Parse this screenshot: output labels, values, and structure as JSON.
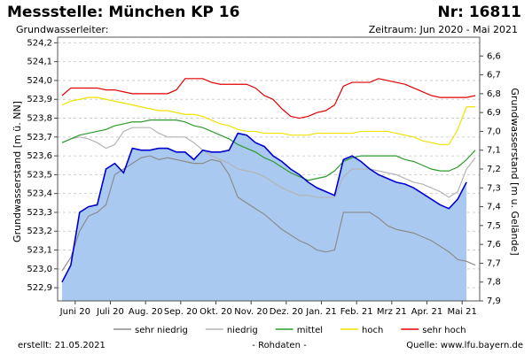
{
  "header": {
    "title": "Messstelle: München KP 16",
    "number": "Nr: 16811",
    "aquifer": "Grundwasserleiter:",
    "period": "Zeitraum: Jun 2020 - Mai 2021"
  },
  "footer": {
    "created": "erstellt:  21.05.2021",
    "note": "- Rohdaten -",
    "source": "Quelle: www.lfu.bayern.de"
  },
  "chart_data": {
    "type": "line",
    "ylabel": "Grundwasserstand [m ü. NN]",
    "y2label": "Grundwasserstand [m u. Gelände]",
    "categories": [
      null,
      "Juni 20",
      null,
      null,
      null,
      "Juli 20",
      null,
      null,
      null,
      "Aug. 20",
      null,
      null,
      null,
      "Sep. 20",
      null,
      null,
      null,
      "Okt. 20",
      null,
      null,
      null,
      "Nov. 20",
      null,
      null,
      null,
      "Dez. 20",
      null,
      null,
      null,
      "Jan. 21",
      null,
      null,
      null,
      "Feb. 21",
      null,
      null,
      null,
      "Mrz 21",
      null,
      null,
      null,
      "Apr. 21",
      null,
      null,
      null,
      "Mai 21",
      null,
      null
    ],
    "ylim": [
      522.83,
      524.23
    ],
    "yticks": [
      {
        "value": 522.9,
        "label": "522,9"
      },
      {
        "value": 523.0,
        "label": "523,0"
      },
      {
        "value": 523.1,
        "label": "523,1"
      },
      {
        "value": 523.2,
        "label": "523,2"
      },
      {
        "value": 523.3,
        "label": "523,3"
      },
      {
        "value": 523.4,
        "label": "523,4"
      },
      {
        "value": 523.5,
        "label": "523,5"
      },
      {
        "value": 523.6,
        "label": "523,6"
      },
      {
        "value": 523.7,
        "label": "523,7"
      },
      {
        "value": 523.8,
        "label": "523,8"
      },
      {
        "value": 523.9,
        "label": "523,9"
      },
      {
        "value": 524.0,
        "label": "524,0"
      },
      {
        "value": 524.1,
        "label": "524,1"
      },
      {
        "value": 524.2,
        "label": "524,2"
      }
    ],
    "y2lim": [
      7.9,
      6.5
    ],
    "y2ticks": [
      {
        "value": 6.6,
        "label": "6,6"
      },
      {
        "value": 6.7,
        "label": "6,7"
      },
      {
        "value": 6.8,
        "label": "6,8"
      },
      {
        "value": 6.9,
        "label": "6,9"
      },
      {
        "value": 7.0,
        "label": "7,0"
      },
      {
        "value": 7.1,
        "label": "7,1"
      },
      {
        "value": 7.2,
        "label": "7,2"
      },
      {
        "value": 7.3,
        "label": "7,3"
      },
      {
        "value": 7.4,
        "label": "7,4"
      },
      {
        "value": 7.5,
        "label": "7,5"
      },
      {
        "value": 7.6,
        "label": "7,6"
      },
      {
        "value": 7.7,
        "label": "7,7"
      },
      {
        "value": 7.8,
        "label": "7,8"
      },
      {
        "value": 7.9,
        "label": "7,9"
      }
    ],
    "grid": true,
    "legend": "bottom",
    "series": [
      {
        "name": "sehr niedrig",
        "color": "#8c8c8c",
        "values": [
          522.99,
          523.06,
          523.2,
          523.28,
          523.3,
          523.34,
          523.5,
          523.53,
          523.56,
          523.59,
          523.6,
          523.58,
          523.59,
          523.58,
          523.57,
          523.56,
          523.56,
          523.58,
          523.57,
          523.5,
          523.38,
          523.35,
          523.32,
          523.29,
          523.25,
          523.21,
          523.18,
          523.15,
          523.13,
          523.1,
          523.09,
          523.1,
          523.3,
          523.3,
          523.3,
          523.3,
          523.27,
          523.23,
          523.21,
          523.2,
          523.19,
          523.17,
          523.15,
          523.12,
          523.09,
          523.05,
          523.04,
          523.02
        ]
      },
      {
        "name": "niedrig",
        "color": "#b4b4b4",
        "values": [
          523.67,
          523.69,
          523.7,
          523.69,
          523.67,
          523.64,
          523.66,
          523.73,
          523.75,
          523.75,
          523.75,
          523.72,
          523.7,
          523.7,
          523.7,
          523.67,
          523.63,
          523.6,
          523.58,
          523.56,
          523.53,
          523.52,
          523.51,
          523.49,
          523.46,
          523.43,
          523.41,
          523.39,
          523.39,
          523.38,
          523.38,
          523.38,
          523.49,
          523.53,
          523.53,
          523.53,
          523.52,
          523.51,
          523.5,
          523.48,
          523.46,
          523.45,
          523.43,
          523.41,
          523.38,
          523.41,
          523.53,
          523.59
        ]
      },
      {
        "name": "mittel",
        "color": "#2e9a2e",
        "values": [
          523.67,
          523.69,
          523.71,
          523.72,
          523.73,
          523.74,
          523.76,
          523.77,
          523.78,
          523.78,
          523.79,
          523.79,
          523.79,
          523.79,
          523.78,
          523.76,
          523.75,
          523.73,
          523.71,
          523.69,
          523.66,
          523.64,
          523.62,
          523.59,
          523.57,
          523.54,
          523.51,
          523.49,
          523.47,
          523.48,
          523.49,
          523.52,
          523.57,
          523.59,
          523.6,
          523.6,
          523.6,
          523.6,
          523.6,
          523.58,
          523.57,
          523.55,
          523.53,
          523.52,
          523.52,
          523.54,
          523.58,
          523.63
        ]
      },
      {
        "name": "hoch",
        "color": "#f2e200",
        "values": [
          523.87,
          523.89,
          523.9,
          523.91,
          523.91,
          523.9,
          523.89,
          523.88,
          523.87,
          523.86,
          523.85,
          523.84,
          523.84,
          523.83,
          523.82,
          523.82,
          523.81,
          523.79,
          523.77,
          523.76,
          523.74,
          523.73,
          523.73,
          523.72,
          523.72,
          523.72,
          523.71,
          523.71,
          523.71,
          523.72,
          523.72,
          523.72,
          523.72,
          523.72,
          523.73,
          523.73,
          523.73,
          523.73,
          523.72,
          523.71,
          523.7,
          523.68,
          523.67,
          523.66,
          523.66,
          523.74,
          523.86,
          523.86
        ]
      },
      {
        "name": "sehr hoch",
        "color": "#e00000",
        "values": [
          523.92,
          523.96,
          523.96,
          523.96,
          523.96,
          523.95,
          523.95,
          523.94,
          523.93,
          523.93,
          523.93,
          523.93,
          523.93,
          523.95,
          524.01,
          524.01,
          524.01,
          523.99,
          523.98,
          523.98,
          523.98,
          523.98,
          523.96,
          523.92,
          523.9,
          523.85,
          523.81,
          523.8,
          523.81,
          523.83,
          523.84,
          523.87,
          523.97,
          523.99,
          523.99,
          523.99,
          524.01,
          524.0,
          523.99,
          523.98,
          523.96,
          523.94,
          523.92,
          523.91,
          523.91,
          523.91,
          523.91,
          523.92
        ]
      }
    ],
    "measured": {
      "color": "#0000cc",
      "fill": "#a9c9f0",
      "values": [
        522.93,
        523.02,
        523.3,
        523.33,
        523.34,
        523.53,
        523.56,
        523.51,
        523.64,
        523.63,
        523.63,
        523.64,
        523.64,
        523.62,
        523.62,
        523.58,
        523.63,
        523.62,
        523.62,
        523.63,
        523.72,
        523.71,
        523.67,
        523.65,
        523.6,
        523.57,
        523.53,
        523.5,
        523.46,
        523.43,
        523.41,
        523.39,
        523.58,
        523.6,
        523.57,
        523.53,
        523.5,
        523.48,
        523.46,
        523.45,
        523.43,
        523.4,
        523.37,
        523.34,
        523.32,
        523.37,
        523.46,
        null
      ]
    }
  }
}
